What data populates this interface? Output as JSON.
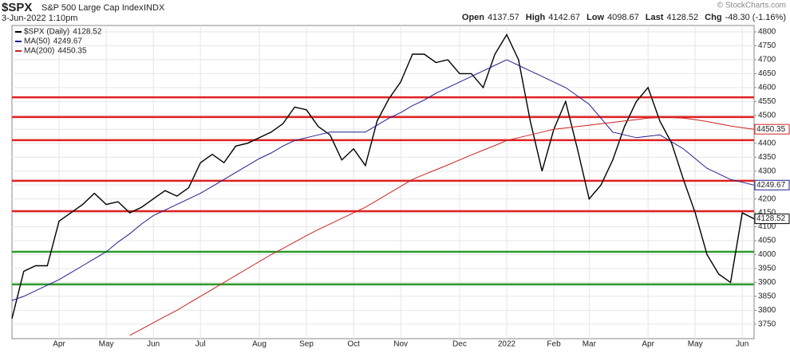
{
  "header": {
    "symbol": "$SPX",
    "name": "S&P 500 Large Cap Index",
    "exchange": "INDX",
    "date": "3-Jun-2022 1:10pm",
    "copyright": "© StockCharts.com",
    "quote": [
      {
        "label": "Open",
        "value": "4137.57"
      },
      {
        "label": "High",
        "value": "4142.67"
      },
      {
        "label": "Low",
        "value": "4098.67"
      },
      {
        "label": "Last",
        "value": "4128.52"
      },
      {
        "label": "Chg",
        "value": "-48.30 (-1.16%)"
      }
    ]
  },
  "chart_data": {
    "type": "line",
    "categories": [
      null,
      null,
      null,
      null,
      "Apr",
      null,
      null,
      null,
      "May",
      null,
      null,
      null,
      "Jun",
      null,
      null,
      null,
      "Jul",
      null,
      null,
      null,
      null,
      "Aug",
      null,
      null,
      null,
      "Sep",
      null,
      null,
      null,
      "Oct",
      null,
      null,
      null,
      "Nov",
      null,
      null,
      null,
      null,
      "Dec",
      null,
      null,
      null,
      "2022",
      null,
      null,
      null,
      "Feb",
      null,
      null,
      "Mar",
      null,
      null,
      null,
      null,
      "Apr",
      null,
      null,
      null,
      "May",
      null,
      null,
      null,
      "Jun",
      null
    ],
    "series": [
      {
        "name": "$SPX (Daily)",
        "color": "#000000",
        "values": [
          3770,
          3940,
          3960,
          3960,
          4120,
          4150,
          4180,
          4220,
          4180,
          4190,
          4150,
          4170,
          4200,
          4230,
          4210,
          4240,
          4330,
          4360,
          4330,
          4390,
          4400,
          4420,
          4440,
          4470,
          4530,
          4520,
          4460,
          4430,
          4340,
          4380,
          4320,
          4480,
          4560,
          4620,
          4720,
          4720,
          4690,
          4700,
          4650,
          4650,
          4600,
          4720,
          4790,
          4700,
          4480,
          4300,
          4450,
          4550,
          4380,
          4200,
          4250,
          4340,
          4460,
          4550,
          4600,
          4480,
          4400,
          4270,
          4150,
          4000,
          3930,
          3900,
          4150,
          4128.52
        ]
      },
      {
        "name": "MA(50)",
        "color": "#1f1f8f",
        "values": [
          3835,
          3850,
          3870,
          3890,
          3910,
          3935,
          3960,
          3985,
          4010,
          4045,
          4075,
          4110,
          4140,
          4160,
          4180,
          4200,
          4220,
          4245,
          4270,
          4295,
          4320,
          4345,
          4365,
          4390,
          4410,
          4420,
          4430,
          4440,
          4440,
          4440,
          4440,
          4465,
          4490,
          4510,
          4535,
          4555,
          4580,
          4600,
          4620,
          4640,
          4660,
          4680,
          4700,
          4680,
          4660,
          4640,
          4620,
          4600,
          4570,
          4540,
          4490,
          4440,
          4430,
          4420,
          4425,
          4430,
          4405,
          4380,
          4345,
          4310,
          4290,
          4270,
          4260,
          4249.67
        ]
      },
      {
        "name": "MA(200)",
        "color": "#cc2222",
        "values": [
          null,
          null,
          null,
          null,
          null,
          null,
          null,
          null,
          null,
          null,
          3710,
          3732,
          3755,
          3778,
          3800,
          3825,
          3850,
          3875,
          3900,
          3925,
          3950,
          3975,
          4000,
          4022,
          4045,
          4068,
          4090,
          4110,
          4130,
          4150,
          4170,
          4195,
          4220,
          4245,
          4270,
          4288,
          4305,
          4322,
          4340,
          4358,
          4375,
          4392,
          4410,
          4420,
          4430,
          4440,
          4450,
          4455,
          4460,
          4465,
          4470,
          4475,
          4480,
          4485,
          4490,
          4492,
          4492,
          4490,
          4485,
          4478,
          4470,
          4462,
          4456,
          4450.35
        ]
      }
    ],
    "levels": [
      {
        "value": 4565,
        "color": "#e02020"
      },
      {
        "value": 4494,
        "color": "#e02020"
      },
      {
        "value": 4411,
        "color": "#e02020"
      },
      {
        "value": 4265,
        "color": "#e02020"
      },
      {
        "value": 4156,
        "color": "#e02020"
      },
      {
        "value": 4010,
        "color": "#2a9a2a"
      },
      {
        "value": 3893,
        "color": "#2a9a2a"
      }
    ],
    "ylim": [
      3698,
      4823
    ],
    "yticks": [
      3750,
      3800,
      3850,
      3900,
      3950,
      4000,
      4050,
      4100,
      4150,
      4200,
      4250,
      4300,
      4350,
      4400,
      4450,
      4500,
      4550,
      4600,
      4650,
      4700,
      4750,
      4800
    ],
    "grid": true
  }
}
